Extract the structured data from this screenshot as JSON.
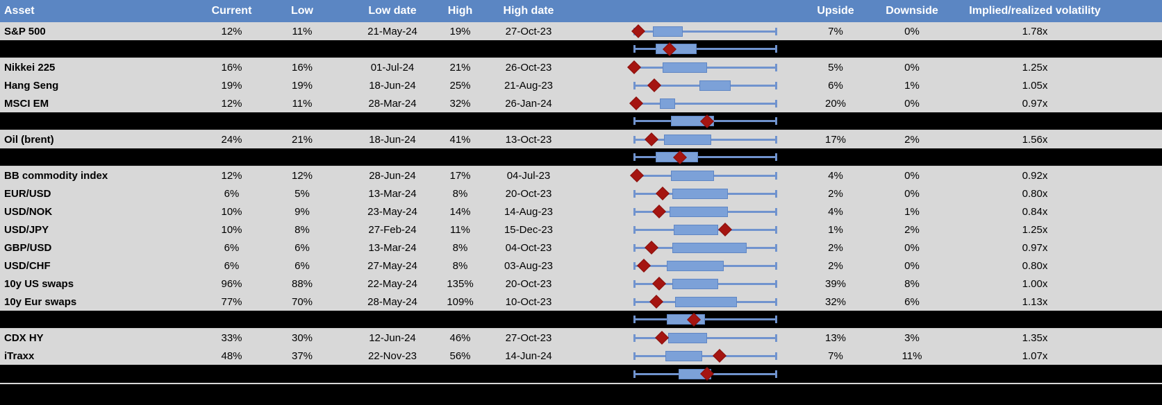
{
  "colors": {
    "header_bg": "#5B86C3",
    "header_text": "#FFFFFF",
    "row_bg": "#D8D8D8",
    "separator_bg": "#000000",
    "box_fill": "#7CA1D8",
    "box_border": "#5F86C4",
    "whisker": "#7093CE",
    "marker": "#A51511",
    "text": "#000000"
  },
  "table": {
    "headers": [
      "Asset",
      "Current",
      "Low",
      "Low date",
      "High",
      "High date",
      "",
      "Upside",
      "Downside",
      "Implied/realized volatility",
      ""
    ],
    "rows": [
      {
        "type": "data",
        "asset": "S&P 500",
        "current": "12%",
        "low": "11%",
        "low_date": "21-May-24",
        "high": "19%",
        "high_date": "27-Oct-23",
        "upside": "7%",
        "downside": "0%",
        "implied": "1.78x",
        "box": {
          "q1": 0.13,
          "q3": 0.34,
          "marker": 0.03
        }
      },
      {
        "type": "separator",
        "asset": "",
        "current": "",
        "low": "",
        "low_date": "",
        "high": "",
        "high_date": "",
        "upside": "",
        "downside": "",
        "implied": "",
        "box": {
          "q1": 0.15,
          "q3": 0.44,
          "marker": 0.25
        }
      },
      {
        "type": "data",
        "asset": "Nikkei 225",
        "current": "16%",
        "low": "16%",
        "low_date": "01-Jul-24",
        "high": "21%",
        "high_date": "26-Oct-23",
        "upside": "5%",
        "downside": "0%",
        "implied": "1.25x",
        "box": {
          "q1": 0.2,
          "q3": 0.51,
          "marker": 0.0
        }
      },
      {
        "type": "data",
        "asset": "Hang Seng",
        "current": "19%",
        "low": "19%",
        "low_date": "18-Jun-24",
        "high": "25%",
        "high_date": "21-Aug-23",
        "upside": "6%",
        "downside": "1%",
        "implied": "1.05x",
        "box": {
          "q1": 0.46,
          "q3": 0.68,
          "marker": 0.14
        }
      },
      {
        "type": "data",
        "asset": "MSCI EM",
        "current": "12%",
        "low": "11%",
        "low_date": "28-Mar-24",
        "high": "32%",
        "high_date": "26-Jan-24",
        "upside": "20%",
        "downside": "0%",
        "implied": "0.97x",
        "box": {
          "q1": 0.18,
          "q3": 0.29,
          "marker": 0.015
        }
      },
      {
        "type": "separator",
        "asset": "",
        "current": "",
        "low": "",
        "low_date": "",
        "high": "",
        "high_date": "",
        "upside": "",
        "downside": "",
        "implied": "",
        "box": {
          "q1": 0.26,
          "q3": 0.56,
          "marker": 0.51
        }
      },
      {
        "type": "data",
        "asset": "Oil (brent)",
        "current": "24%",
        "low": "21%",
        "low_date": "18-Jun-24",
        "high": "41%",
        "high_date": "13-Oct-23",
        "upside": "17%",
        "downside": "2%",
        "implied": "1.56x",
        "box": {
          "q1": 0.21,
          "q3": 0.54,
          "marker": 0.12
        }
      },
      {
        "type": "separator",
        "asset": "",
        "current": "",
        "low": "",
        "low_date": "",
        "high": "",
        "high_date": "",
        "upside": "",
        "downside": "",
        "implied": "",
        "box": {
          "q1": 0.15,
          "q3": 0.45,
          "marker": 0.32
        }
      },
      {
        "type": "data",
        "asset": "BB commodity index",
        "current": "12%",
        "low": "12%",
        "low_date": "28-Jun-24",
        "high": "17%",
        "high_date": "04-Jul-23",
        "upside": "4%",
        "downside": "0%",
        "implied": "0.92x",
        "box": {
          "q1": 0.26,
          "q3": 0.56,
          "marker": 0.02
        }
      },
      {
        "type": "data",
        "asset": "EUR/USD",
        "current": "6%",
        "low": "5%",
        "low_date": "13-Mar-24",
        "high": "8%",
        "high_date": "20-Oct-23",
        "upside": "2%",
        "downside": "0%",
        "implied": "0.80x",
        "box": {
          "q1": 0.27,
          "q3": 0.66,
          "marker": 0.2
        }
      },
      {
        "type": "data",
        "asset": "USD/NOK",
        "current": "10%",
        "low": "9%",
        "low_date": "23-May-24",
        "high": "14%",
        "high_date": "14-Aug-23",
        "upside": "4%",
        "downside": "1%",
        "implied": "0.84x",
        "box": {
          "q1": 0.25,
          "q3": 0.66,
          "marker": 0.175
        }
      },
      {
        "type": "data",
        "asset": "USD/JPY",
        "current": "10%",
        "low": "8%",
        "low_date": "27-Feb-24",
        "high": "11%",
        "high_date": "15-Dec-23",
        "upside": "1%",
        "downside": "2%",
        "implied": "1.25x",
        "box": {
          "q1": 0.28,
          "q3": 0.59,
          "marker": 0.64
        }
      },
      {
        "type": "data",
        "asset": "GBP/USD",
        "current": "6%",
        "low": "6%",
        "low_date": "13-Mar-24",
        "high": "8%",
        "high_date": "04-Oct-23",
        "upside": "2%",
        "downside": "0%",
        "implied": "0.97x",
        "box": {
          "q1": 0.27,
          "q3": 0.79,
          "marker": 0.12
        }
      },
      {
        "type": "data",
        "asset": "USD/CHF",
        "current": "6%",
        "low": "6%",
        "low_date": "27-May-24",
        "high": "8%",
        "high_date": "03-Aug-23",
        "upside": "2%",
        "downside": "0%",
        "implied": "0.80x",
        "box": {
          "q1": 0.23,
          "q3": 0.63,
          "marker": 0.07
        }
      },
      {
        "type": "data",
        "asset": "10y US swaps",
        "current": "96%",
        "low": "88%",
        "low_date": "22-May-24",
        "high": "135%",
        "high_date": "20-Oct-23",
        "upside": "39%",
        "downside": "8%",
        "implied": "1.00x",
        "box": {
          "q1": 0.27,
          "q3": 0.59,
          "marker": 0.175
        }
      },
      {
        "type": "data",
        "asset": "10y Eur swaps",
        "current": "77%",
        "low": "70%",
        "low_date": "28-May-24",
        "high": "109%",
        "high_date": "10-Oct-23",
        "upside": "32%",
        "downside": "6%",
        "implied": "1.13x",
        "box": {
          "q1": 0.29,
          "q3": 0.72,
          "marker": 0.155
        }
      },
      {
        "type": "separator",
        "asset": "",
        "current": "",
        "low": "",
        "low_date": "",
        "high": "",
        "high_date": "",
        "upside": "",
        "downside": "",
        "implied": "",
        "box": {
          "q1": 0.23,
          "q3": 0.5,
          "marker": 0.42
        }
      },
      {
        "type": "data",
        "asset": "CDX HY",
        "current": "33%",
        "low": "30%",
        "low_date": "12-Jun-24",
        "high": "46%",
        "high_date": "27-Oct-23",
        "upside": "13%",
        "downside": "3%",
        "implied": "1.35x",
        "box": {
          "q1": 0.24,
          "q3": 0.51,
          "marker": 0.195
        }
      },
      {
        "type": "data",
        "asset": "iTraxx",
        "current": "48%",
        "low": "37%",
        "low_date": "22-Nov-23",
        "high": "56%",
        "high_date": "14-Jun-24",
        "upside": "7%",
        "downside": "11%",
        "implied": "1.07x",
        "box": {
          "q1": 0.22,
          "q3": 0.48,
          "marker": 0.6
        }
      },
      {
        "type": "separator",
        "asset": "",
        "current": "",
        "low": "",
        "low_date": "",
        "high": "",
        "high_date": "",
        "upside": "",
        "downside": "",
        "implied": "",
        "box": {
          "q1": 0.31,
          "q3": 0.54,
          "marker": 0.51
        }
      }
    ]
  },
  "chart_data": {
    "type": "boxplot",
    "orientation": "horizontal",
    "x_axis": "normalized 0..1 across each asset's low-to-high implied volatility range (whiskers = low/high, diamond = current level)",
    "rows": [
      {
        "label": "S&P 500",
        "low_pct": 11,
        "high_pct": 19,
        "current_pct": 12,
        "whisker": [
          0,
          1
        ],
        "box": [
          0.13,
          0.34
        ],
        "marker": 0.03
      },
      {
        "label": null,
        "whisker": [
          0,
          1
        ],
        "box": [
          0.15,
          0.44
        ],
        "marker": 0.25
      },
      {
        "label": "Nikkei 225",
        "low_pct": 16,
        "high_pct": 21,
        "current_pct": 16,
        "whisker": [
          0,
          1
        ],
        "box": [
          0.2,
          0.51
        ],
        "marker": 0.0
      },
      {
        "label": "Hang Seng",
        "low_pct": 19,
        "high_pct": 25,
        "current_pct": 19,
        "whisker": [
          0,
          1
        ],
        "box": [
          0.46,
          0.68
        ],
        "marker": 0.14
      },
      {
        "label": "MSCI EM",
        "low_pct": 11,
        "high_pct": 32,
        "current_pct": 12,
        "whisker": [
          0,
          1
        ],
        "box": [
          0.18,
          0.29
        ],
        "marker": 0.015
      },
      {
        "label": null,
        "whisker": [
          0,
          1
        ],
        "box": [
          0.26,
          0.56
        ],
        "marker": 0.51
      },
      {
        "label": "Oil (brent)",
        "low_pct": 21,
        "high_pct": 41,
        "current_pct": 24,
        "whisker": [
          0,
          1
        ],
        "box": [
          0.21,
          0.54
        ],
        "marker": 0.12
      },
      {
        "label": null,
        "whisker": [
          0,
          1
        ],
        "box": [
          0.15,
          0.45
        ],
        "marker": 0.32
      },
      {
        "label": "BB commodity index",
        "low_pct": 12,
        "high_pct": 17,
        "current_pct": 12,
        "whisker": [
          0,
          1
        ],
        "box": [
          0.26,
          0.56
        ],
        "marker": 0.02
      },
      {
        "label": "EUR/USD",
        "low_pct": 5,
        "high_pct": 8,
        "current_pct": 6,
        "whisker": [
          0,
          1
        ],
        "box": [
          0.27,
          0.66
        ],
        "marker": 0.2
      },
      {
        "label": "USD/NOK",
        "low_pct": 9,
        "high_pct": 14,
        "current_pct": 10,
        "whisker": [
          0,
          1
        ],
        "box": [
          0.25,
          0.66
        ],
        "marker": 0.175
      },
      {
        "label": "USD/JPY",
        "low_pct": 8,
        "high_pct": 11,
        "current_pct": 10,
        "whisker": [
          0,
          1
        ],
        "box": [
          0.28,
          0.59
        ],
        "marker": 0.64
      },
      {
        "label": "GBP/USD",
        "low_pct": 6,
        "high_pct": 8,
        "current_pct": 6,
        "whisker": [
          0,
          1
        ],
        "box": [
          0.27,
          0.79
        ],
        "marker": 0.12
      },
      {
        "label": "USD/CHF",
        "low_pct": 6,
        "high_pct": 8,
        "current_pct": 6,
        "whisker": [
          0,
          1
        ],
        "box": [
          0.23,
          0.63
        ],
        "marker": 0.07
      },
      {
        "label": "10y US swaps",
        "low_pct": 88,
        "high_pct": 135,
        "current_pct": 96,
        "whisker": [
          0,
          1
        ],
        "box": [
          0.27,
          0.59
        ],
        "marker": 0.175
      },
      {
        "label": "10y Eur swaps",
        "low_pct": 70,
        "high_pct": 109,
        "current_pct": 77,
        "whisker": [
          0,
          1
        ],
        "box": [
          0.29,
          0.72
        ],
        "marker": 0.155
      },
      {
        "label": null,
        "whisker": [
          0,
          1
        ],
        "box": [
          0.23,
          0.5
        ],
        "marker": 0.42
      },
      {
        "label": "CDX HY",
        "low_pct": 30,
        "high_pct": 46,
        "current_pct": 33,
        "whisker": [
          0,
          1
        ],
        "box": [
          0.24,
          0.51
        ],
        "marker": 0.195
      },
      {
        "label": "iTraxx",
        "low_pct": 37,
        "high_pct": 56,
        "current_pct": 48,
        "whisker": [
          0,
          1
        ],
        "box": [
          0.22,
          0.48
        ],
        "marker": 0.6
      },
      {
        "label": null,
        "whisker": [
          0,
          1
        ],
        "box": [
          0.31,
          0.54
        ],
        "marker": 0.51
      }
    ]
  }
}
